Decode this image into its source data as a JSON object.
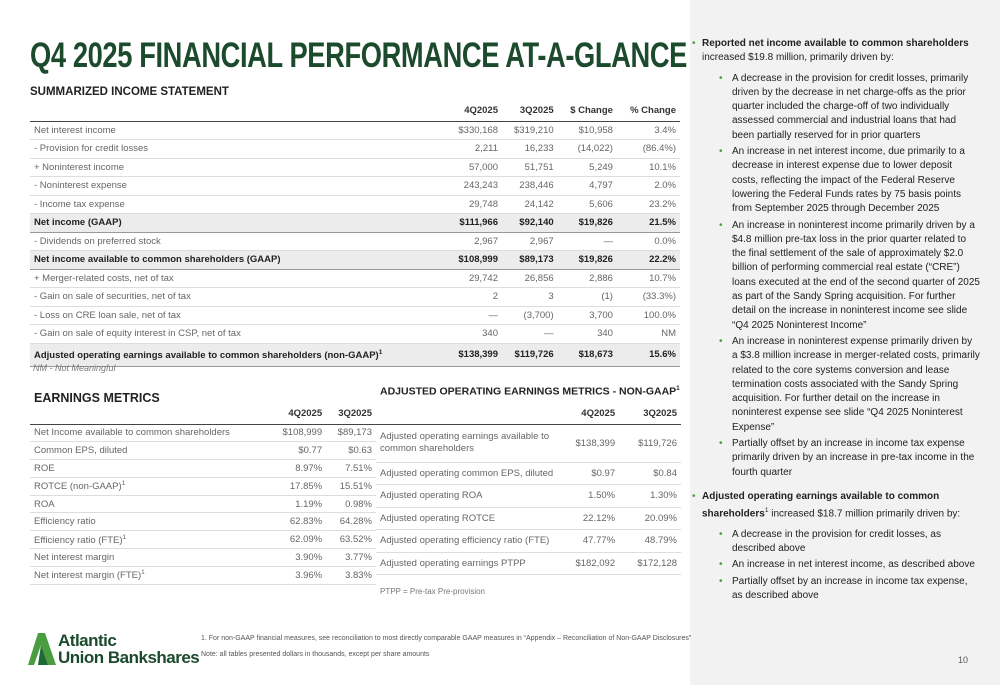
{
  "header": {
    "title": "Q4 2025 FINANCIAL PERFORMANCE AT-A-GLANCE"
  },
  "income_statement": {
    "title": "SUMMARIZED INCOME STATEMENT",
    "columns": [
      "4Q2025",
      "3Q2025",
      "$ Change",
      "% Change"
    ],
    "rows": [
      {
        "cells": [
          "Net interest income",
          "$330,168",
          "$319,210",
          "$10,958",
          "3.4%"
        ]
      },
      {
        "cells": [
          "- Provision for credit losses",
          "2,211",
          "16,233",
          "(14,022)",
          "(86.4%)"
        ]
      },
      {
        "cells": [
          "+ Noninterest income",
          "57,000",
          "51,751",
          "5,249",
          "10.1%"
        ]
      },
      {
        "cells": [
          "- Noninterest expense",
          "243,243",
          "238,446",
          "4,797",
          "2.0%"
        ]
      },
      {
        "cells": [
          "- Income tax expense",
          "29,748",
          "24,142",
          "5,606",
          "23.2%"
        ]
      },
      {
        "cells": [
          "Net income (GAAP)",
          "$111,966",
          "$92,140",
          "$19,826",
          "21.5%"
        ],
        "highlight": true
      },
      {
        "cells": [
          "- Dividends on preferred stock",
          "2,967",
          "2,967",
          "—",
          "0.0%"
        ]
      },
      {
        "cells": [
          "Net income available to common shareholders (GAAP)",
          "$108,999",
          "$89,173",
          "$19,826",
          "22.2%"
        ],
        "highlight": true
      },
      {
        "cells": [
          "+ Merger-related costs, net of tax",
          "29,742",
          "26,856",
          "2,886",
          "10.7%"
        ]
      },
      {
        "cells": [
          "- Gain on sale of securities, net of tax",
          "2",
          "3",
          "(1)",
          "(33.3%)"
        ]
      },
      {
        "cells": [
          "- Loss on CRE loan sale, net of tax",
          "—",
          "(3,700)",
          "3,700",
          "100.0%"
        ]
      },
      {
        "cells": [
          "- Gain on sale of equity interest in CSP, net of tax",
          "340",
          "—",
          "340",
          "NM"
        ]
      },
      {
        "cells": [
          "Adjusted operating earnings available to common shareholders (non-GAAP)",
          "$138,399",
          "$119,726",
          "$18,673",
          "15.6%"
        ],
        "note": "1",
        "highlight": true
      }
    ],
    "footer": "NM - Not Meaningful"
  },
  "earnings_metrics": {
    "title": "EARNINGS METRICS",
    "columns": [
      "4Q2025",
      "3Q2025"
    ],
    "rows": [
      {
        "cells": [
          "Net Income available to common shareholders",
          "$108,999",
          "$89,173"
        ]
      },
      {
        "cells": [
          "Common EPS, diluted",
          "$0.77",
          "$0.63"
        ]
      },
      {
        "cells": [
          "ROE",
          "8.97%",
          "7.51%"
        ]
      },
      {
        "cells": [
          "ROTCE (non-GAAP)",
          "17.85%",
          "15.51%"
        ],
        "note": "1"
      },
      {
        "cells": [
          "ROA",
          "1.19%",
          "0.98%"
        ]
      },
      {
        "cells": [
          "Efficiency ratio",
          "62.83%",
          "64.28%"
        ]
      },
      {
        "cells": [
          "Efficiency ratio (FTE)",
          "62.09%",
          "63.52%"
        ],
        "note": "1"
      },
      {
        "cells": [
          "Net interest margin",
          "3.90%",
          "3.77%"
        ]
      },
      {
        "cells": [
          "Net interest margin (FTE)",
          "3.96%",
          "3.83%"
        ],
        "note": "1"
      }
    ]
  },
  "adjusted_metrics": {
    "title": "ADJUSTED OPERATING EARNINGS METRICS - NON-GAAP",
    "note": "1",
    "columns": [
      "4Q2025",
      "3Q2025"
    ],
    "rows": [
      {
        "cells": [
          "Adjusted operating earnings available to common shareholders",
          "$138,399",
          "$119,726"
        ]
      },
      {
        "cells": [
          "Adjusted operating common EPS, diluted",
          "$0.97",
          "$0.84"
        ]
      },
      {
        "cells": [
          "Adjusted operating ROA",
          "1.50%",
          "1.30%"
        ]
      },
      {
        "cells": [
          "Adjusted operating ROTCE",
          "22.12%",
          "20.09%"
        ]
      },
      {
        "cells": [
          "Adjusted operating efficiency ratio (FTE)",
          "47.77%",
          "48.79%"
        ]
      },
      {
        "cells": [
          "Adjusted operating earnings PTPP",
          "$182,092",
          "$172,128"
        ]
      }
    ],
    "footer": "PTPP = Pre-tax Pre-provision"
  },
  "commentary": [
    {
      "lead": "Reported net income available to common shareholders",
      "text": " increased $19.8 million, primarily driven by:",
      "items": [
        "A decrease in the provision for credit losses, primarily driven by the decrease in net charge-offs as the prior quarter included the charge-off of two individually assessed commercial and industrial loans that had been partially reserved for in prior quarters",
        "An increase in net interest income, due primarily to a decrease in interest expense due to lower deposit costs, reflecting the impact of the Federal Reserve lowering the Federal Funds rates by 75 basis points from September 2025 through December 2025",
        "An increase in noninterest income primarily driven by a $4.8 million pre-tax loss in the prior quarter related to the final settlement of the sale of approximately $2.0 billion of performing commercial real estate (“CRE”) loans executed at the end of the second quarter of 2025 as part of the Sandy Spring acquisition. For further detail on the increase in noninterest income see slide “Q4 2025 Noninterest Income”",
        "An increase in noninterest expense primarily driven by a $3.8 million increase in merger-related costs, primarily related to the core systems conversion and lease termination costs associated with the Sandy Spring acquisition. For further detail on the increase in noninterest expense see slide “Q4 2025 Noninterest Expense”",
        "Partially offset by an increase in income tax expense primarily driven by an increase in pre-tax income in the fourth quarter"
      ]
    },
    {
      "lead": "Adjusted operating earnings available to common shareholders",
      "note": "1",
      "text": " increased $18.7 million primarily driven by:",
      "items": [
        "A decrease in the provision for credit losses, as described above",
        "An increase in net interest income, as described above",
        "Partially offset by an increase in income tax expense, as described above"
      ]
    }
  ],
  "footnotes": [
    "1. For non-GAAP financial measures, see reconciliation to most directly comparable GAAP measures in “Appendix – Reconciliation of Non-GAAP Disclosures”",
    "Note: all tables presented dollars in thousands, except per share amounts"
  ],
  "logo": [
    "Atlantic",
    "Union Bankshares"
  ],
  "page_number": "10"
}
